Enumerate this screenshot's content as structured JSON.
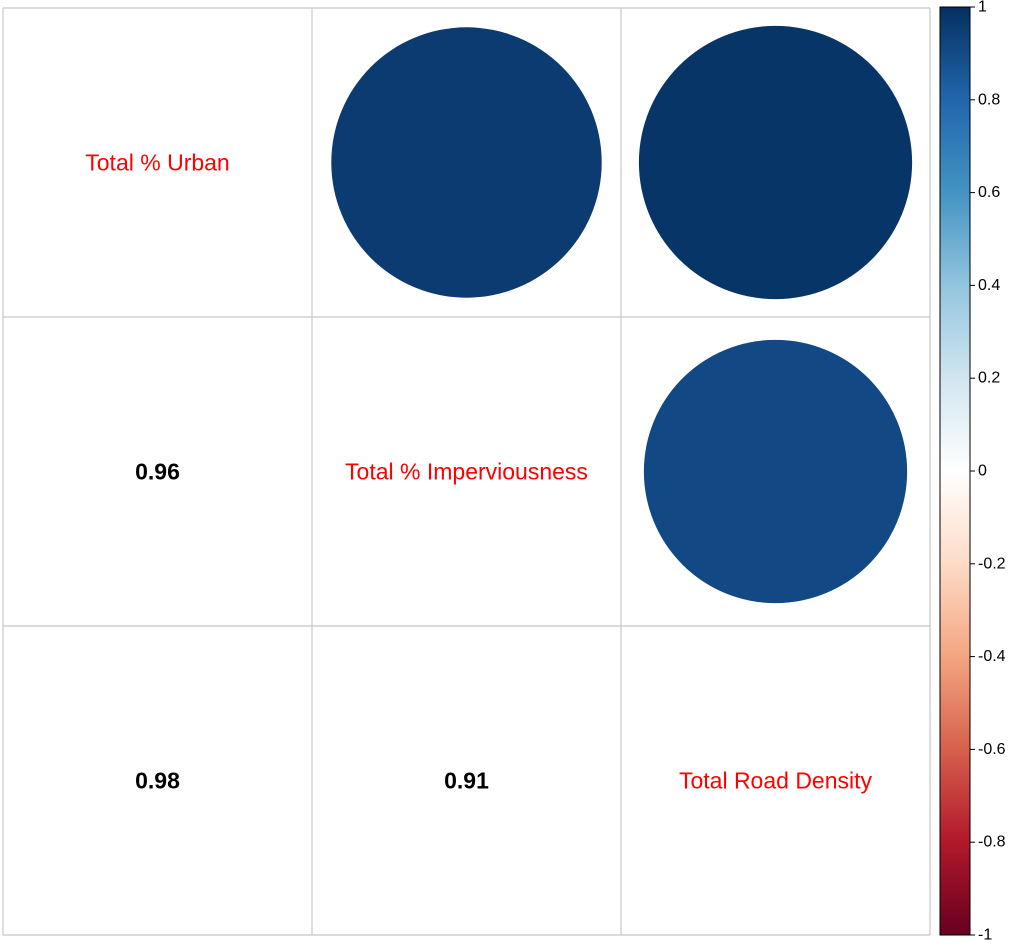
{
  "chart_data": {
    "type": "heatmap",
    "subtype": "correlation-matrix",
    "variables": [
      "Total % Urban",
      "Total % Imperviousness",
      "Total Road Density"
    ],
    "matrix": [
      [
        1.0,
        0.96,
        0.98
      ],
      [
        0.96,
        1.0,
        0.91
      ],
      [
        0.98,
        0.91,
        1.0
      ]
    ],
    "upper_triangle": "circle",
    "lower_triangle": "number",
    "diagonal": "variable-name",
    "number_format_digits": 2,
    "colorbar": {
      "range": [
        -1,
        1
      ],
      "ticks": [
        1,
        0.8,
        0.6,
        0.4,
        0.2,
        0,
        -0.2,
        -0.4,
        -0.6,
        -0.8,
        -1
      ],
      "tick_labels": [
        "1",
        "0.8",
        "0.6",
        "0.4",
        "0.2",
        "0",
        "-0.2",
        "-0.4",
        "-0.6",
        "-0.8",
        "-1"
      ],
      "placement": "right",
      "palette": [
        "#67001F",
        "#B2182B",
        "#D6604D",
        "#F4A582",
        "#FDDBC7",
        "#FFFFFF",
        "#D1E5F0",
        "#92C5DE",
        "#4393C3",
        "#2166AC",
        "#053061"
      ]
    },
    "label_color": "#FF0000",
    "grid": true,
    "grid_color": "#C8C8C8"
  }
}
